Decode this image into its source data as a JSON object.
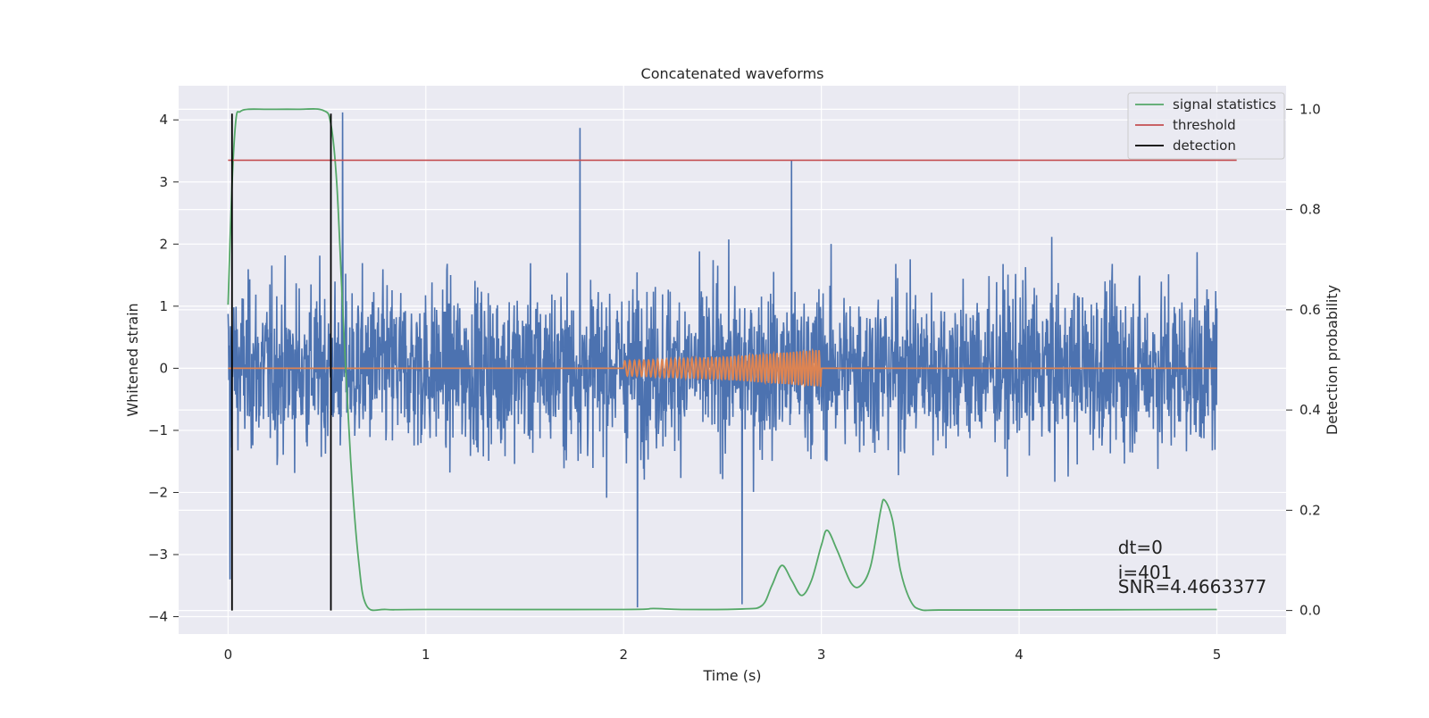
{
  "chart_data": {
    "type": "line",
    "title": "Concatenated waveforms",
    "xlabel": "Time (s)",
    "ylabel": "Whitened strain",
    "y2label": "Detection probability",
    "xlim": [
      -0.25,
      5.35
    ],
    "ylim": [
      -4.28,
      4.55
    ],
    "y2lim": [
      -0.047,
      1.047
    ],
    "xticks": [
      0,
      1,
      2,
      3,
      4,
      5
    ],
    "xtick_labels": [
      "0",
      "1",
      "2",
      "3",
      "4",
      "5"
    ],
    "yticks": [
      -4,
      -3,
      -2,
      -1,
      0,
      1,
      2,
      3,
      4
    ],
    "ytick_labels": [
      "−4",
      "−3",
      "−2",
      "−1",
      "0",
      "1",
      "2",
      "3",
      "4"
    ],
    "y2ticks": [
      0.0,
      0.2,
      0.4,
      0.6,
      0.8,
      1.0
    ],
    "y2tick_labels": [
      "0.0",
      "0.2",
      "0.4",
      "0.6",
      "0.8",
      "1.0"
    ],
    "grid": true,
    "legend_position": "top-right",
    "legend": [
      {
        "label": "signal statistics",
        "color": "#55a868"
      },
      {
        "label": "threshold",
        "color": "#c44e52"
      },
      {
        "label": "detection",
        "color": "#000000"
      }
    ],
    "series": [
      {
        "name": "",
        "role": "whitened strain (noise)",
        "color": "#4c72b0",
        "axis": "left",
        "x_range": [
          0,
          5
        ],
        "amplitude_approx": 1.2,
        "notable_spikes": [
          {
            "x": 0.58,
            "y": 4.12
          },
          {
            "x": 1.78,
            "y": 3.87
          },
          {
            "x": 0.01,
            "y": -3.4
          },
          {
            "x": 2.07,
            "y": -3.85
          },
          {
            "x": 2.6,
            "y": -3.8
          },
          {
            "x": 2.85,
            "y": 3.35
          }
        ]
      },
      {
        "name": "",
        "role": "injected chirp template",
        "color": "#dd8452",
        "axis": "left",
        "x": [
          0,
          2.0,
          2.5,
          3.0,
          5.0
        ],
        "envelope": [
          0,
          0.12,
          0.18,
          0.3,
          0
        ],
        "chirp_start": 2.0,
        "chirp_end": 3.0
      },
      {
        "name": "signal statistics",
        "color": "#55a868",
        "axis": "right",
        "x": [
          0.0,
          0.02,
          0.04,
          0.06,
          0.1,
          0.2,
          0.35,
          0.48,
          0.52,
          0.55,
          0.58,
          0.62,
          0.66,
          0.7,
          0.8,
          1.0,
          2.0,
          2.15,
          2.3,
          2.6,
          2.7,
          2.75,
          2.8,
          2.85,
          2.9,
          2.95,
          3.0,
          3.03,
          3.08,
          3.15,
          3.2,
          3.25,
          3.3,
          3.32,
          3.36,
          3.4,
          3.45,
          3.5,
          3.6,
          4.0,
          5.0
        ],
        "values": [
          0.61,
          0.85,
          0.98,
          0.995,
          1.0,
          1.0,
          1.0,
          0.998,
          0.97,
          0.85,
          0.6,
          0.3,
          0.1,
          0.01,
          0.002,
          0.002,
          0.002,
          0.004,
          0.002,
          0.003,
          0.01,
          0.05,
          0.09,
          0.06,
          0.03,
          0.06,
          0.13,
          0.16,
          0.12,
          0.055,
          0.05,
          0.09,
          0.2,
          0.22,
          0.18,
          0.08,
          0.02,
          0.002,
          0.001,
          0.001,
          0.002
        ]
      },
      {
        "name": "threshold",
        "color": "#c44e52",
        "axis": "left",
        "x": [
          0,
          5.1
        ],
        "values": [
          3.35,
          3.35
        ]
      },
      {
        "name": "detection",
        "color": "#000000",
        "axis": "left",
        "vlines": [
          0.02,
          0.52
        ],
        "y_span": [
          -3.9,
          4.1
        ]
      }
    ],
    "annotations": [
      {
        "text": "dt=0",
        "x": 4.5,
        "y": -3.0
      },
      {
        "text": "i=401",
        "x": 4.5,
        "y": -3.4
      },
      {
        "text": "SNR=4.4663377",
        "x": 4.5,
        "y": -3.65
      }
    ]
  }
}
